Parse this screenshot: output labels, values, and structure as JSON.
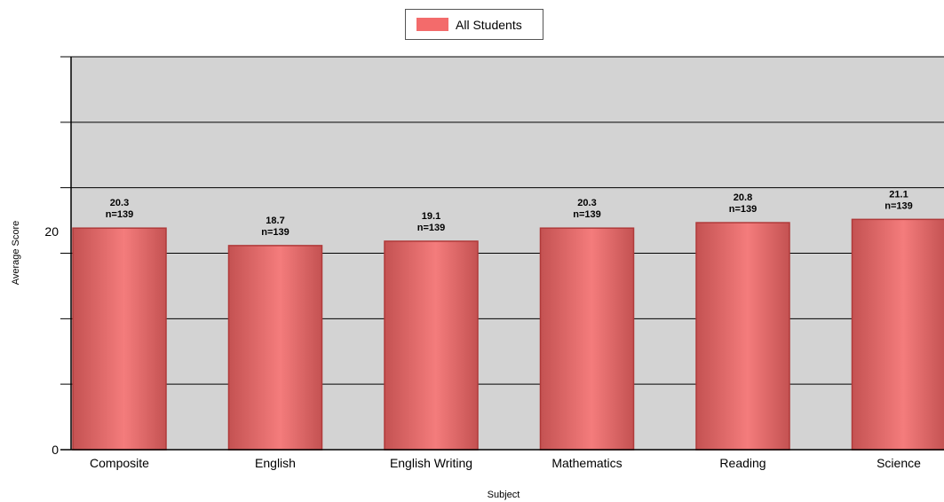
{
  "legend": {
    "label": "All Students",
    "color": "#f36b6b"
  },
  "colors": {
    "plot_bg": "#d3d3d3",
    "bar_edge": "#b03a3a",
    "bar_light": "#f47c7c",
    "bar_dark": "#c45252"
  },
  "chart_data": {
    "type": "bar",
    "title": "",
    "xlabel": "Subject",
    "ylabel": "Average Score",
    "ylim": [
      0,
      36
    ],
    "yticks": [
      0,
      20
    ],
    "gridlines": [
      6,
      12,
      18,
      24,
      30
    ],
    "grid": true,
    "legend_position": "top-center",
    "categories": [
      "Composite",
      "English",
      "English Writing",
      "Mathematics",
      "Reading",
      "Science"
    ],
    "series": [
      {
        "name": "All Students",
        "values": [
          20.3,
          18.7,
          19.1,
          20.3,
          20.8,
          21.1
        ],
        "value_labels": [
          "20.3",
          "18.7",
          "19.1",
          "20.3",
          "20.8",
          "21.1"
        ],
        "n_labels": [
          "n=139",
          "n=139",
          "n=139",
          "n=139",
          "n=139",
          "n=139"
        ]
      }
    ]
  }
}
